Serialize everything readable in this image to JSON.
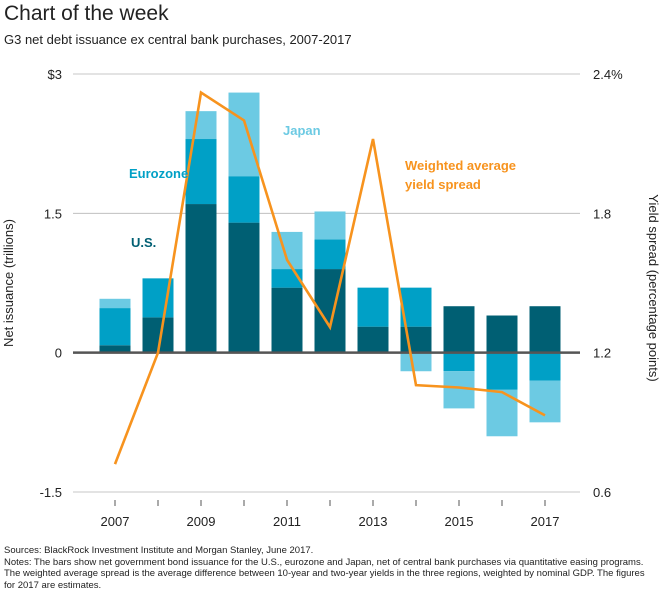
{
  "header": {
    "title": "Chart of the week",
    "subtitle": "G3 net debt issuance ex central bank purchases, 2007-2017"
  },
  "chart_data": {
    "type": "bar",
    "stacked": true,
    "categories": [
      "2007",
      "2008",
      "2009",
      "2010",
      "2011",
      "2012",
      "2013",
      "2014",
      "2015",
      "2016",
      "2017"
    ],
    "x_tick_labels": [
      "2007",
      "2009",
      "2011",
      "2013",
      "2015",
      "2017"
    ],
    "ylabel": "Net issuance (trillions)",
    "y2label": "Yield spread (percentage points)",
    "ylim": [
      -1.5,
      3
    ],
    "y2lim": [
      0.6,
      2.4
    ],
    "y_ticks": [
      {
        "value": 3,
        "label": "$3"
      },
      {
        "value": 1.5,
        "label": "1.5"
      },
      {
        "value": 0,
        "label": "0"
      },
      {
        "value": -1.5,
        "label": "-1.5"
      }
    ],
    "y2_ticks": [
      {
        "value": 2.4,
        "label": "2.4%"
      },
      {
        "value": 1.8,
        "label": "1.8"
      },
      {
        "value": 1.2,
        "label": "1.2"
      },
      {
        "value": 0.6,
        "label": "0.6"
      }
    ],
    "series": [
      {
        "name": "U.S.",
        "color": "#005f73",
        "values": [
          0.08,
          0.38,
          1.6,
          1.4,
          0.7,
          0.9,
          0.28,
          0.28,
          0.5,
          0.4,
          0.5
        ]
      },
      {
        "name": "Eurozone",
        "color": "#00a0c6",
        "values": [
          0.4,
          0.42,
          0.7,
          0.5,
          0.2,
          0.32,
          0.42,
          0.42,
          -0.2,
          -0.4,
          -0.3
        ]
      },
      {
        "name": "Japan",
        "color": "#6ccae3",
        "values": [
          0.1,
          0,
          0.3,
          0.9,
          0.4,
          0.3,
          0,
          -0.2,
          -0.4,
          -0.5,
          -0.45
        ]
      }
    ],
    "line": {
      "name": "Weighted average yield spread",
      "color": "#f7931e",
      "axis": "right",
      "values": [
        0.72,
        1.2,
        2.32,
        2.2,
        1.6,
        1.31,
        2.12,
        1.06,
        1.05,
        1.03,
        0.93
      ]
    },
    "legend_labels": [
      {
        "text": "Eurozone",
        "color": "#00a0c6"
      },
      {
        "text": "U.S.",
        "color": "#005f73"
      },
      {
        "text": "Japan",
        "color": "#6ccae3"
      },
      {
        "text": "Weighted average",
        "color": "#f7931e"
      },
      {
        "text": "yield spread",
        "color": "#f7931e"
      }
    ]
  },
  "notes": {
    "sources": "Sources: BlackRock Investment Institute and Morgan Stanley, June 2017.",
    "notes": "Notes: The bars show net government bond issuance for the U.S., eurozone and Japan, net of central bank purchases via quantitative easing programs. The weighted average spread is the average difference between 10-year and two-year yields in the three regions, weighted by nominal GDP. The figures for 2017 are estimates."
  }
}
